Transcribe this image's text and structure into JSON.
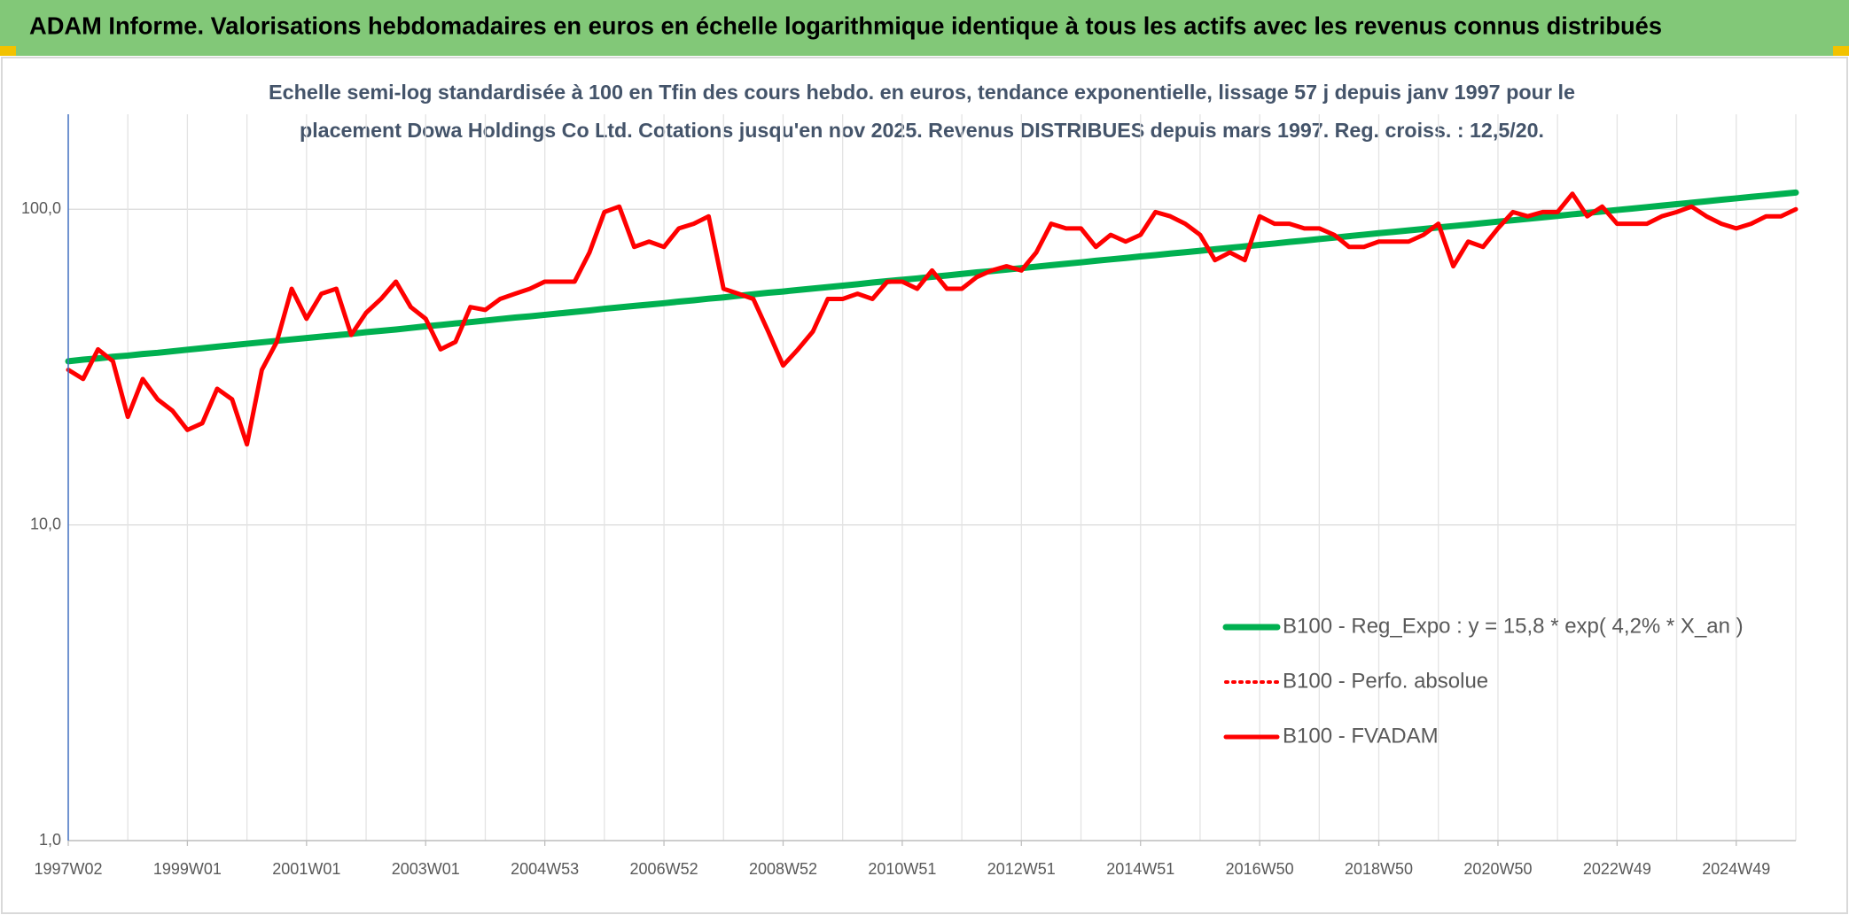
{
  "chart_data": {
    "type": "line",
    "title": "ADAM Informe. Valorisations hebdomadaires en euros en échelle logarithmique identique à tous les actifs avec les revenus connus distribués",
    "subtitle": [
      "Echelle semi-log standardisée à 100 en Tfin des cours hebdo. en euros, tendance exponentielle, lissage 57 j depuis janv 1997 pour le",
      "placement Dowa Holdings Co Ltd. Cotations jusqu'en nov 2025. Revenus DISTRIBUES depuis mars 1997. Reg. croiss. : 12,5/20."
    ],
    "log_scale": true,
    "grid": true,
    "legend": "lower right",
    "ylim": [
      1,
      200
    ],
    "yticks": [
      {
        "value": 1,
        "label": "1,0"
      },
      {
        "value": 10,
        "label": "10,0"
      },
      {
        "value": 100,
        "label": "100,0"
      }
    ],
    "categories": [
      "1997W02",
      null,
      null,
      null,
      null,
      null,
      null,
      null,
      "1999W01",
      null,
      null,
      null,
      null,
      null,
      null,
      null,
      "2001W01",
      null,
      null,
      null,
      null,
      null,
      null,
      null,
      "2003W01",
      null,
      null,
      null,
      null,
      null,
      null,
      null,
      "2004W53",
      null,
      null,
      null,
      null,
      null,
      null,
      null,
      "2006W52",
      null,
      null,
      null,
      null,
      null,
      null,
      null,
      "2008W52",
      null,
      null,
      null,
      null,
      null,
      null,
      null,
      "2010W51",
      null,
      null,
      null,
      null,
      null,
      null,
      null,
      "2012W51",
      null,
      null,
      null,
      null,
      null,
      null,
      null,
      "2014W51",
      null,
      null,
      null,
      null,
      null,
      null,
      null,
      "2016W50",
      null,
      null,
      null,
      null,
      null,
      null,
      null,
      "2018W50",
      null,
      null,
      null,
      null,
      null,
      null,
      null,
      "2020W50",
      null,
      null,
      null,
      null,
      null,
      null,
      null,
      "2022W49",
      null,
      null,
      null,
      null,
      null,
      null,
      null,
      "2024W49",
      null,
      null,
      null,
      null
    ],
    "series": [
      {
        "name": "B100 - Reg_Expo : y = 15,8 * exp( 4,2% *  X_an )",
        "color": "#00b050",
        "style": "solid",
        "width": 7,
        "values": [
          33.0,
          33.4,
          33.7,
          34.1,
          34.4,
          34.8,
          35.1,
          35.5,
          35.9,
          36.3,
          36.7,
          37.1,
          37.5,
          37.9,
          38.3,
          38.7,
          39.1,
          39.5,
          39.9,
          40.3,
          40.8,
          41.2,
          41.6,
          42.1,
          42.6,
          43.0,
          43.5,
          43.9,
          44.4,
          44.9,
          45.4,
          45.8,
          46.3,
          46.8,
          47.3,
          47.8,
          48.4,
          48.9,
          49.4,
          49.9,
          50.4,
          51.0,
          51.5,
          52.1,
          52.6,
          53.2,
          53.8,
          54.4,
          54.9,
          55.5,
          56.1,
          56.7,
          57.3,
          57.9,
          58.6,
          59.2,
          59.8,
          60.4,
          61.1,
          61.7,
          62.4,
          63.1,
          63.7,
          64.4,
          65.1,
          65.8,
          66.5,
          67.2,
          67.9,
          68.7,
          69.4,
          70.1,
          70.9,
          71.6,
          72.4,
          73.1,
          73.9,
          74.7,
          75.5,
          76.3,
          77.1,
          77.9,
          78.8,
          79.6,
          80.5,
          81.3,
          82.2,
          83.1,
          84.0,
          84.8,
          85.7,
          86.6,
          87.6,
          88.5,
          89.4,
          90.4,
          91.4,
          92.3,
          93.3,
          94.3,
          95.3,
          96.4,
          97.4,
          98.4,
          99.5,
          100.5,
          101.6,
          102.7,
          103.8,
          104.9,
          106.0,
          107.2,
          108.3,
          109.5,
          110.6,
          111.8,
          113.0
        ]
      },
      {
        "name": "B100 - Perfo. absolue",
        "color": "#ff0000",
        "style": "dotted",
        "width": 4,
        "values": [
          31,
          29,
          36,
          33,
          22,
          29,
          25,
          23,
          20,
          21,
          27,
          25,
          18,
          31,
          38,
          56,
          45,
          54,
          56,
          40,
          47,
          52,
          59,
          49,
          45,
          36,
          38,
          49,
          48,
          52,
          54,
          56,
          59,
          59,
          59,
          73,
          98,
          102,
          76,
          79,
          76,
          87,
          90,
          95,
          56,
          54,
          52,
          41,
          32,
          36,
          41,
          52,
          52,
          54,
          52,
          59,
          59,
          56,
          64,
          56,
          56,
          61,
          64,
          66,
          64,
          73,
          90,
          87,
          87,
          76,
          83,
          79,
          83,
          98,
          95,
          90,
          83,
          69,
          73,
          69,
          95,
          90,
          90,
          87,
          87,
          83,
          76,
          76,
          79,
          79,
          79,
          83,
          90,
          66,
          79,
          76,
          87,
          98,
          95,
          98,
          98,
          112,
          95,
          102,
          90,
          90,
          90,
          95,
          98,
          102,
          95,
          90,
          87,
          90,
          95,
          95,
          100
        ]
      },
      {
        "name": "B100 - FVADAM",
        "color": "#ff0000",
        "style": "solid",
        "width": 5,
        "values": [
          31,
          29,
          36,
          33,
          22,
          29,
          25,
          23,
          20,
          21,
          27,
          25,
          18,
          31,
          38,
          56,
          45,
          54,
          56,
          40,
          47,
          52,
          59,
          49,
          45,
          36,
          38,
          49,
          48,
          52,
          54,
          56,
          59,
          59,
          59,
          73,
          98,
          102,
          76,
          79,
          76,
          87,
          90,
          95,
          56,
          54,
          52,
          41,
          32,
          36,
          41,
          52,
          52,
          54,
          52,
          59,
          59,
          56,
          64,
          56,
          56,
          61,
          64,
          66,
          64,
          73,
          90,
          87,
          87,
          76,
          83,
          79,
          83,
          98,
          95,
          90,
          83,
          69,
          73,
          69,
          95,
          90,
          90,
          87,
          87,
          83,
          76,
          76,
          79,
          79,
          79,
          83,
          90,
          66,
          79,
          76,
          87,
          98,
          95,
          98,
          98,
          112,
          95,
          102,
          90,
          90,
          90,
          95,
          98,
          102,
          95,
          90,
          87,
          90,
          95,
          95,
          100
        ]
      }
    ]
  }
}
